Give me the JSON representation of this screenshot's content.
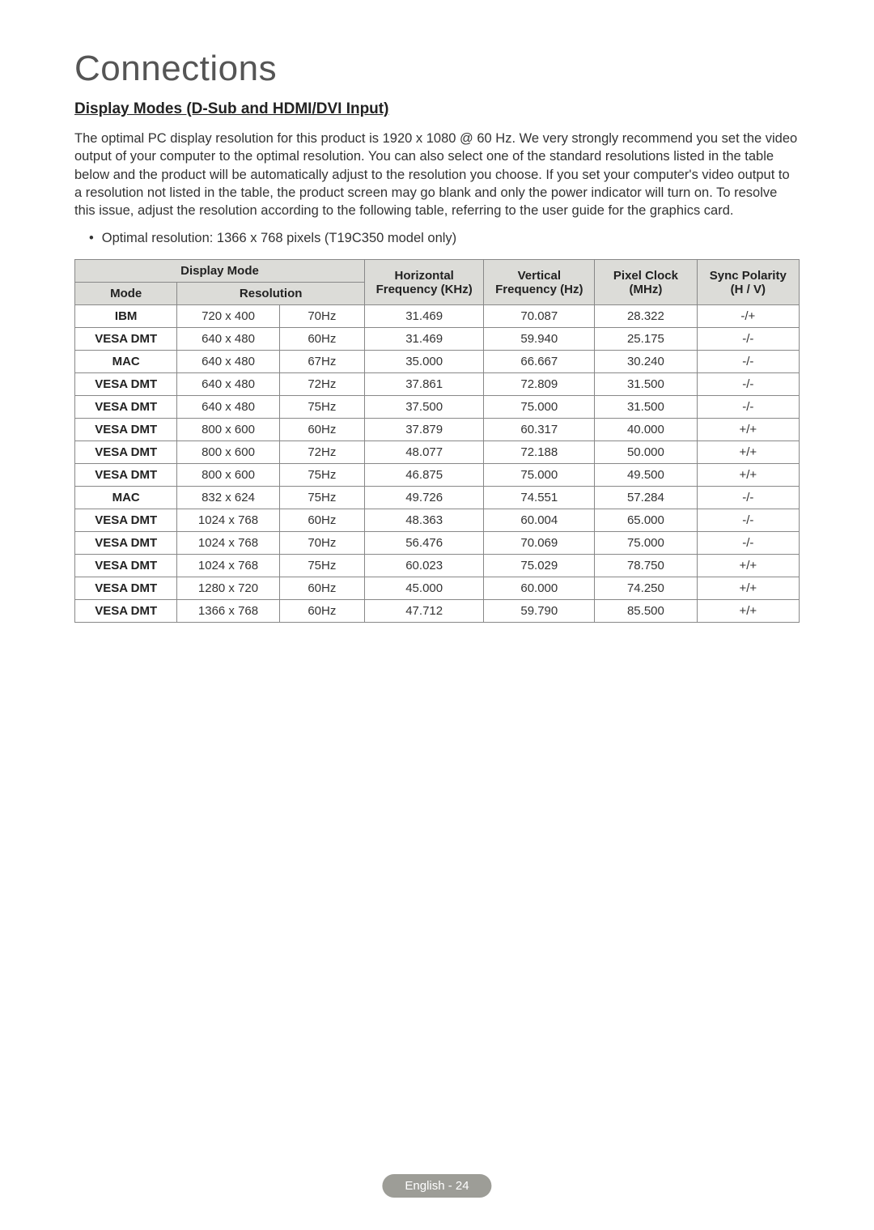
{
  "title": "Connections",
  "subtitle": "Display Modes (D-Sub and HDMI/DVI Input)",
  "paragraph": "The optimal PC display resolution for this product is 1920 x 1080 @ 60 Hz. We very strongly recommend you set the video output of your computer to the optimal resolution. You can also select one of the standard resolutions listed in the table below and the product will be automatically adjust to the resolution you choose. If you set your computer's video output to a resolution not listed in the table, the product screen may go blank and only the power indicator will turn on. To resolve this issue, adjust the resolution according to the following table, referring to the user guide for the graphics card.",
  "bullet": "Optimal resolution: 1366 x 768 pixels (T19C350 model only)",
  "headers": {
    "display_mode": "Display Mode",
    "mode": "Mode",
    "resolution": "Resolution",
    "h_freq": "Horizontal Frequency (KHz)",
    "v_freq": "Vertical Frequency (Hz)",
    "pixel_clock": "Pixel Clock (MHz)",
    "sync": "Sync Polarity (H / V)"
  },
  "rows": [
    {
      "mode": "IBM",
      "res": "720 x 400",
      "rate": "70Hz",
      "hf": "31.469",
      "vf": "70.087",
      "pc": "28.322",
      "sp": "-/+"
    },
    {
      "mode": "VESA DMT",
      "res": "640 x 480",
      "rate": "60Hz",
      "hf": "31.469",
      "vf": "59.940",
      "pc": "25.175",
      "sp": "-/-"
    },
    {
      "mode": "MAC",
      "res": "640 x 480",
      "rate": "67Hz",
      "hf": "35.000",
      "vf": "66.667",
      "pc": "30.240",
      "sp": "-/-"
    },
    {
      "mode": "VESA DMT",
      "res": "640 x 480",
      "rate": "72Hz",
      "hf": "37.861",
      "vf": "72.809",
      "pc": "31.500",
      "sp": "-/-"
    },
    {
      "mode": "VESA DMT",
      "res": "640 x 480",
      "rate": "75Hz",
      "hf": "37.500",
      "vf": "75.000",
      "pc": "31.500",
      "sp": "-/-"
    },
    {
      "mode": "VESA DMT",
      "res": "800 x 600",
      "rate": "60Hz",
      "hf": "37.879",
      "vf": "60.317",
      "pc": "40.000",
      "sp": "+/+"
    },
    {
      "mode": "VESA DMT",
      "res": "800 x 600",
      "rate": "72Hz",
      "hf": "48.077",
      "vf": "72.188",
      "pc": "50.000",
      "sp": "+/+"
    },
    {
      "mode": "VESA DMT",
      "res": "800 x 600",
      "rate": "75Hz",
      "hf": "46.875",
      "vf": "75.000",
      "pc": "49.500",
      "sp": "+/+"
    },
    {
      "mode": "MAC",
      "res": "832 x 624",
      "rate": "75Hz",
      "hf": "49.726",
      "vf": "74.551",
      "pc": "57.284",
      "sp": "-/-"
    },
    {
      "mode": "VESA DMT",
      "res": "1024 x 768",
      "rate": "60Hz",
      "hf": "48.363",
      "vf": "60.004",
      "pc": "65.000",
      "sp": "-/-"
    },
    {
      "mode": "VESA DMT",
      "res": "1024 x 768",
      "rate": "70Hz",
      "hf": "56.476",
      "vf": "70.069",
      "pc": "75.000",
      "sp": "-/-"
    },
    {
      "mode": "VESA DMT",
      "res": "1024 x 768",
      "rate": "75Hz",
      "hf": "60.023",
      "vf": "75.029",
      "pc": "78.750",
      "sp": "+/+"
    },
    {
      "mode": "VESA DMT",
      "res": "1280 x 720",
      "rate": "60Hz",
      "hf": "45.000",
      "vf": "60.000",
      "pc": "74.250",
      "sp": "+/+"
    },
    {
      "mode": "VESA DMT",
      "res": "1366 x 768",
      "rate": "60Hz",
      "hf": "47.712",
      "vf": "59.790",
      "pc": "85.500",
      "sp": "+/+"
    }
  ],
  "footer": "English - 24"
}
